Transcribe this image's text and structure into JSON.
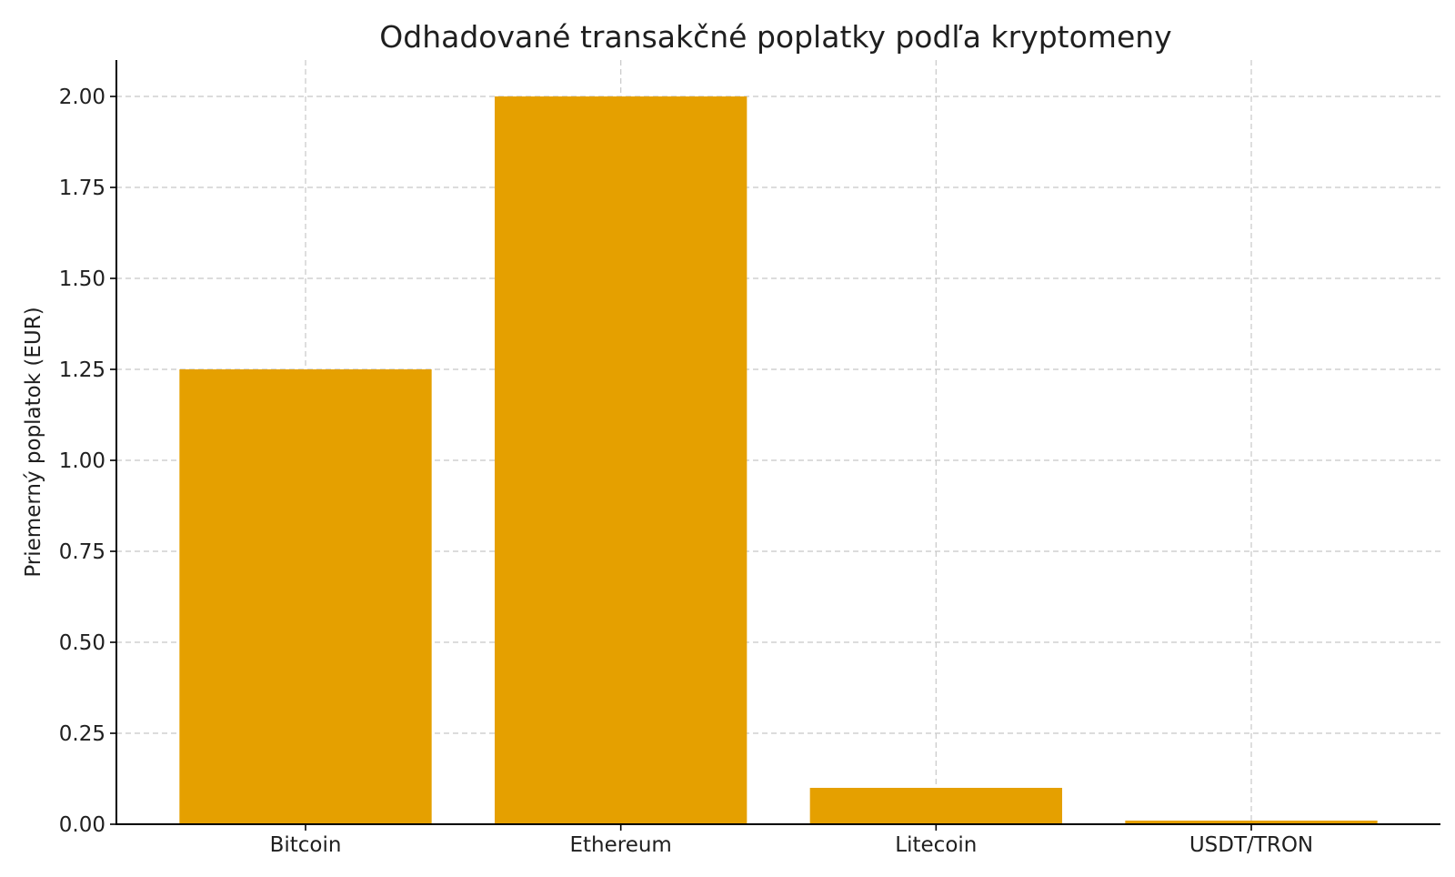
{
  "chart_data": {
    "type": "bar",
    "title": "Odhadované transakčné poplatky podľa kryptomeny",
    "xlabel": "",
    "ylabel": "Priemerný poplatok (EUR)",
    "categories": [
      "Bitcoin",
      "Ethereum",
      "Litecoin",
      "USDT/TRON"
    ],
    "values": [
      1.25,
      2.0,
      0.1,
      0.01
    ],
    "ylim": [
      0,
      2.1
    ],
    "yticks": [
      "0.00",
      "0.25",
      "0.50",
      "0.75",
      "1.00",
      "1.25",
      "1.50",
      "1.75",
      "2.00"
    ],
    "grid": true,
    "bar_color": "#e5a000"
  }
}
